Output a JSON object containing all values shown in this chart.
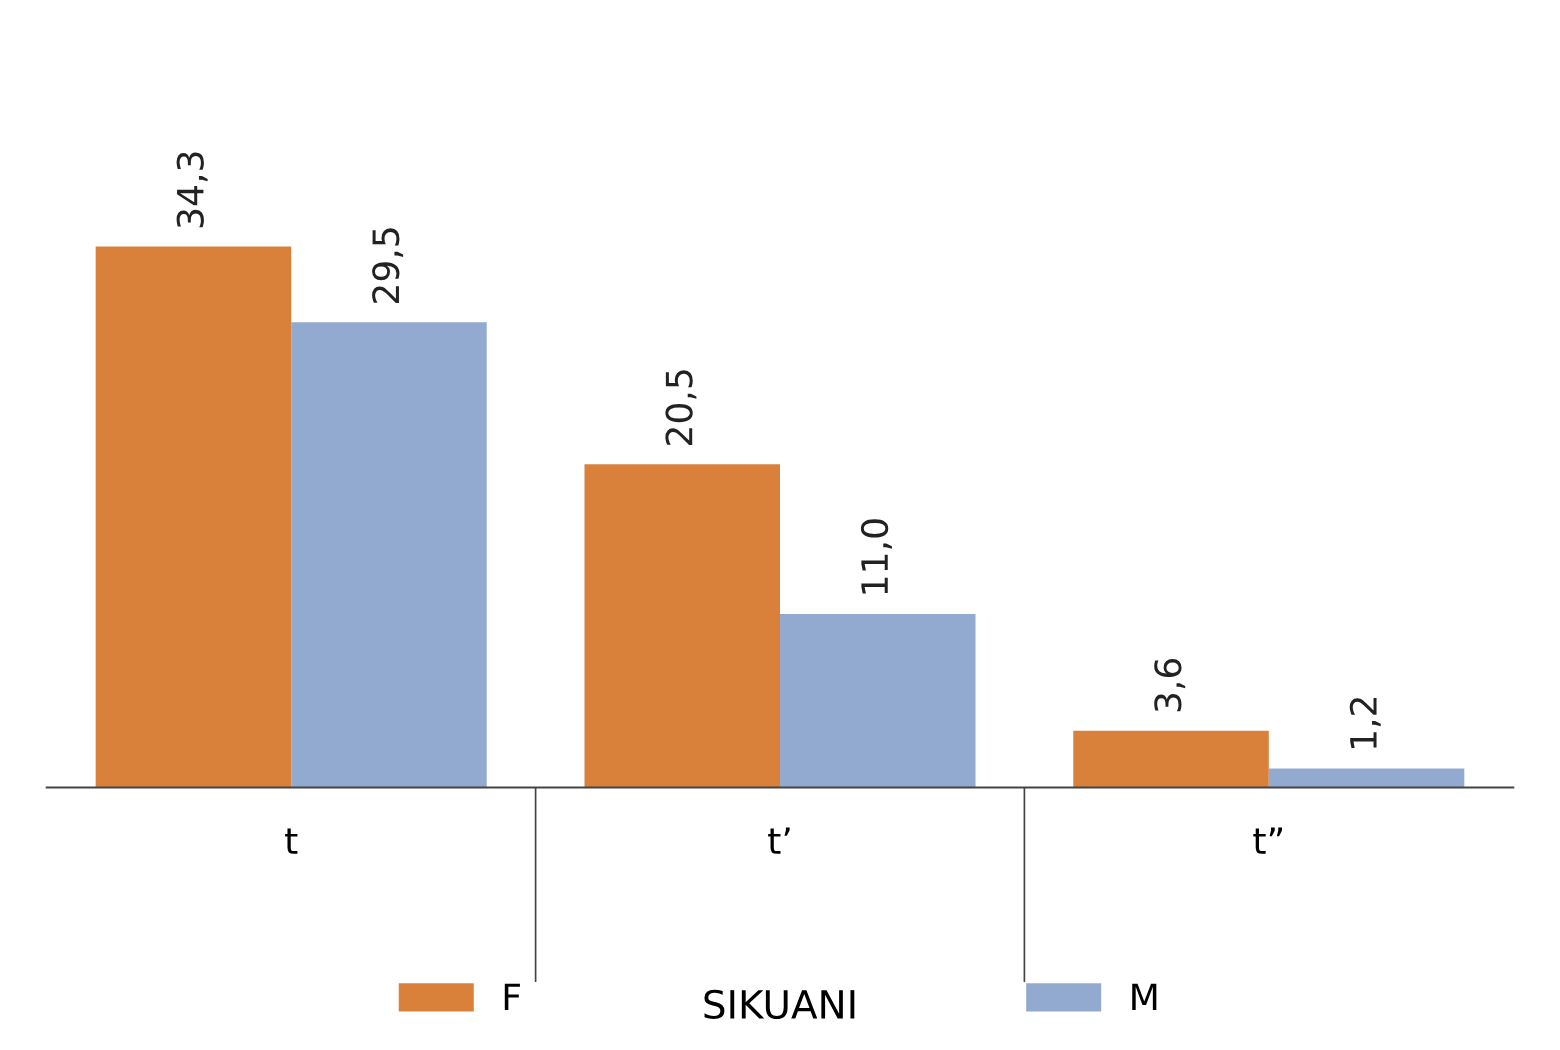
{
  "chart_data": {
    "type": "bar",
    "title": "SIKUANI",
    "categories": [
      "t",
      "t’",
      "t”"
    ],
    "series": [
      {
        "name": "F",
        "color": "#d9813b",
        "values": [
          34.3,
          20.5,
          3.6
        ],
        "value_labels": [
          "34,3",
          "20,5",
          "3,6"
        ]
      },
      {
        "name": "M",
        "color": "#92aacf",
        "values": [
          29.5,
          11.0,
          1.2
        ],
        "value_labels": [
          "29,5",
          "11,0",
          "1,2"
        ]
      }
    ],
    "legend": "bottom",
    "grid": false,
    "tick_labels": "x"
  }
}
